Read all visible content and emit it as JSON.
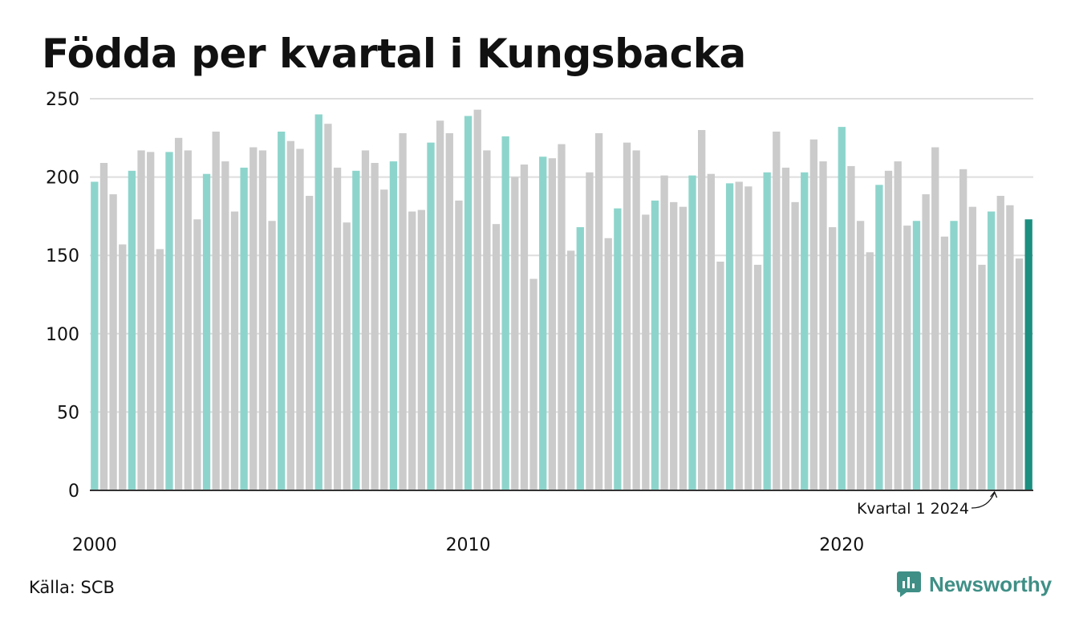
{
  "title": "Födda per kvartal i Kungsbacka",
  "source": "Källa: SCB",
  "brand": {
    "name": "Newsworthy",
    "icon": "newsworthy-logo-icon"
  },
  "colors": {
    "q1": "#8dd5cc",
    "other": "#cbcbcb",
    "latest": "#1c8f80",
    "grid": "#dddddd",
    "axis": "#333333"
  },
  "chart_data": {
    "type": "bar",
    "title": "Födda per kvartal i Kungsbacka",
    "xlabel": "",
    "ylabel": "",
    "ylim": [
      0,
      250
    ],
    "yticks": [
      "0",
      "50",
      "100",
      "150",
      "200",
      "250"
    ],
    "xticks": [
      "2000",
      "2010",
      "2020"
    ],
    "grid": true,
    "start": {
      "year": 2000,
      "quarter": 1
    },
    "values": [
      197,
      209,
      189,
      157,
      204,
      217,
      216,
      154,
      216,
      225,
      217,
      173,
      202,
      229,
      210,
      178,
      206,
      219,
      217,
      172,
      229,
      223,
      218,
      188,
      240,
      234,
      206,
      171,
      204,
      217,
      209,
      192,
      210,
      228,
      178,
      179,
      222,
      236,
      228,
      185,
      239,
      243,
      217,
      170,
      226,
      200,
      208,
      135,
      213,
      212,
      221,
      153,
      168,
      203,
      228,
      161,
      180,
      222,
      217,
      176,
      185,
      201,
      184,
      181,
      201,
      230,
      202,
      146,
      196,
      197,
      194,
      144,
      203,
      229,
      206,
      184,
      203,
      224,
      210,
      168,
      232,
      207,
      172,
      152,
      195,
      204,
      210,
      169,
      172,
      189,
      219,
      162,
      172,
      205,
      181,
      144,
      178,
      188,
      182,
      148,
      173
    ],
    "annotation": {
      "text": "Kvartal 1 2024",
      "period": "2024 Q1"
    }
  }
}
